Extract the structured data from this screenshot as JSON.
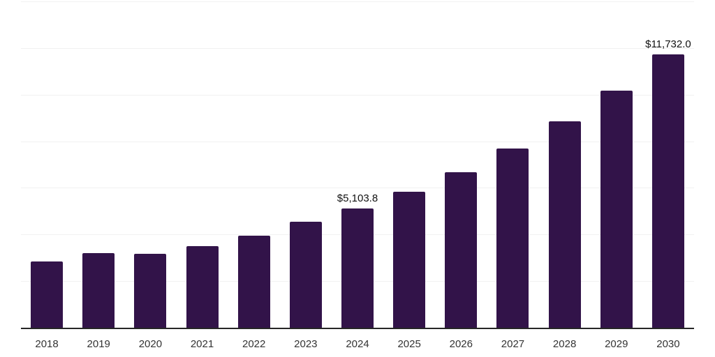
{
  "chart_data": {
    "type": "bar",
    "title": "",
    "xlabel": "",
    "ylabel": "",
    "categories": [
      "2018",
      "2019",
      "2020",
      "2021",
      "2022",
      "2023",
      "2024",
      "2025",
      "2026",
      "2027",
      "2028",
      "2029",
      "2030"
    ],
    "values": [
      2840,
      3200,
      3170,
      3500,
      3950,
      4540,
      5103.8,
      5840,
      6670,
      7690,
      8860,
      10180,
      11732.0
    ],
    "value_labels": [
      "",
      "",
      "",
      "",
      "",
      "",
      "$5,103.8",
      "",
      "",
      "",
      "",
      "",
      "$11,732.0"
    ],
    "ylim": [
      0,
      14000
    ],
    "grid_step": 2000,
    "grid": true,
    "legend": "none",
    "colors": {
      "bar": "#321349",
      "grid_line": "#f1f1f1",
      "axis_line": "#262626",
      "tick_label": "#333333",
      "value_label": "#111111",
      "background": "#ffffff"
    }
  }
}
